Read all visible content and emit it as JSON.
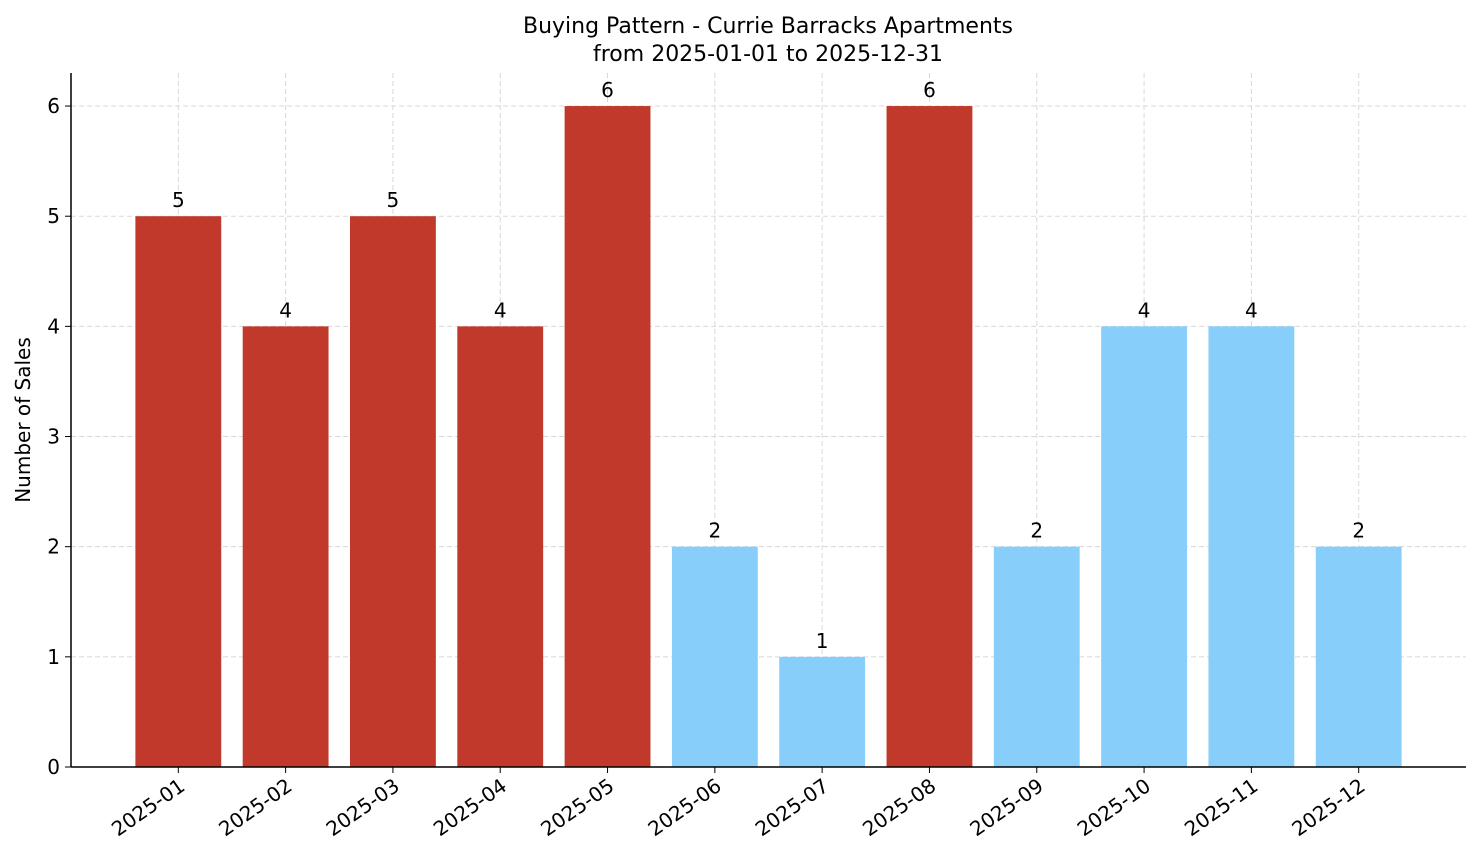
{
  "chart_data": {
    "type": "bar",
    "title": "Buying Pattern - Currie Barracks Apartments",
    "subtitle": "from 2025-01-01 to 2025-12-31",
    "y_label": "Number of Sales",
    "categories": [
      "2025-01",
      "2025-02",
      "2025-03",
      "2025-04",
      "2025-05",
      "2025-06",
      "2025-07",
      "2025-08",
      "2025-09",
      "2025-10",
      "2025-11",
      "2025-12"
    ],
    "values": [
      5,
      4,
      5,
      4,
      6,
      2,
      1,
      6,
      2,
      4,
      4,
      2
    ],
    "colors": [
      "#c0392b",
      "#c0392b",
      "#c0392b",
      "#c0392b",
      "#c0392b",
      "#87cefa",
      "#87cefa",
      "#c0392b",
      "#87cefa",
      "#87cefa",
      "#87cefa",
      "#87cefa"
    ],
    "ylim": [
      0,
      6.3
    ],
    "yticks": [
      0,
      1,
      2,
      3,
      4,
      5,
      6
    ],
    "grid": true
  }
}
